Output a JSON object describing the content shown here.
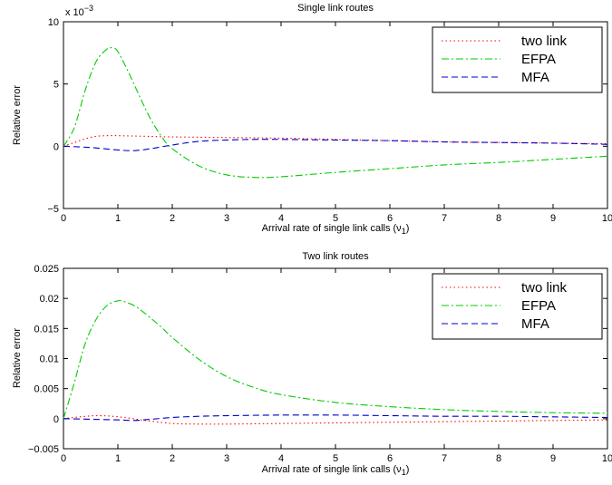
{
  "chart_data": [
    {
      "type": "line",
      "title": "Single link routes",
      "xlabel_main": "Arrival rate of single link calls (ν",
      "xlabel_sub": "1",
      "xlabel_close": ")",
      "ylabel": "Relative error",
      "exponent_label": "x 10",
      "exponent_power": "−3",
      "xlim": [
        0,
        10
      ],
      "ylim": [
        -5,
        10
      ],
      "xticks": [
        0,
        1,
        2,
        3,
        4,
        5,
        6,
        7,
        8,
        9,
        10
      ],
      "xtick_labels": [
        "0",
        "1",
        "2",
        "3",
        "4",
        "5",
        "6",
        "7",
        "8",
        "9",
        "10"
      ],
      "yticks": [
        -5,
        0,
        5,
        10
      ],
      "ytick_labels": [
        "−5",
        "0",
        "5",
        "10"
      ],
      "legend_position": "top-right",
      "series": [
        {
          "name": "two link",
          "color": "#ff0000",
          "dash": "1.5,3",
          "x": [
            0,
            0.2,
            0.4,
            0.6,
            0.8,
            1.0,
            1.5,
            2,
            3,
            4,
            5,
            6,
            7,
            8,
            9,
            10
          ],
          "y": [
            0,
            0.3,
            0.6,
            0.8,
            0.85,
            0.85,
            0.8,
            0.75,
            0.7,
            0.65,
            0.55,
            0.45,
            0.35,
            0.3,
            0.25,
            0.2
          ]
        },
        {
          "name": "EFPA",
          "color": "#00cc00",
          "dash": "8,3,2,3",
          "x": [
            0,
            0.2,
            0.4,
            0.6,
            0.8,
            0.9,
            1.0,
            1.2,
            1.4,
            1.6,
            1.8,
            2.0,
            2.5,
            3.0,
            3.5,
            4.0,
            5,
            6,
            7,
            8,
            9,
            10
          ],
          "y": [
            0,
            1.5,
            4.5,
            6.8,
            7.8,
            7.9,
            7.6,
            5.9,
            4.0,
            2.2,
            0.8,
            -0.2,
            -1.6,
            -2.3,
            -2.5,
            -2.45,
            -2.1,
            -1.8,
            -1.5,
            -1.3,
            -1.05,
            -0.8
          ]
        },
        {
          "name": "MFA",
          "color": "#0000cc",
          "dash": "7,4",
          "x": [
            0,
            0.5,
            1.0,
            1.3,
            1.6,
            2.0,
            2.5,
            3.0,
            3.5,
            4.0,
            5,
            6,
            7,
            8,
            9,
            10
          ],
          "y": [
            0,
            -0.1,
            -0.3,
            -0.35,
            -0.2,
            0.1,
            0.4,
            0.5,
            0.55,
            0.55,
            0.5,
            0.45,
            0.35,
            0.3,
            0.25,
            0.15
          ]
        }
      ]
    },
    {
      "type": "line",
      "title": "Two link routes",
      "xlabel_main": "Arrival rate of single link calls (ν",
      "xlabel_sub": "1",
      "xlabel_close": ")",
      "ylabel": "Relative error",
      "xlim": [
        0,
        10
      ],
      "ylim": [
        -0.005,
        0.025
      ],
      "xticks": [
        0,
        1,
        2,
        3,
        4,
        5,
        6,
        7,
        8,
        9,
        10
      ],
      "xtick_labels": [
        "0",
        "1",
        "2",
        "3",
        "4",
        "5",
        "6",
        "7",
        "8",
        "9",
        "10"
      ],
      "yticks": [
        -0.005,
        0,
        0.005,
        0.01,
        0.015,
        0.02,
        0.025
      ],
      "ytick_labels": [
        "−0.005",
        "0",
        "0.005",
        "0.01",
        "0.015",
        "0.02",
        "0.025"
      ],
      "legend_position": "top-right",
      "series": [
        {
          "name": "two link",
          "color": "#ff0000",
          "dash": "1.5,3",
          "x": [
            0,
            0.3,
            0.6,
            0.9,
            1.2,
            1.5,
            2,
            2.5,
            3,
            4,
            5,
            6,
            7,
            8,
            9,
            10
          ],
          "y": [
            0,
            0.0003,
            0.0005,
            0.0004,
            0.0001,
            -0.0003,
            -0.0008,
            -0.0009,
            -0.0009,
            -0.0008,
            -0.0007,
            -0.0006,
            -0.0005,
            -0.0004,
            -0.0003,
            -0.0002
          ]
        },
        {
          "name": "EFPA",
          "color": "#00cc00",
          "dash": "8,3,2,3",
          "x": [
            0,
            0.2,
            0.4,
            0.6,
            0.8,
            1.0,
            1.1,
            1.3,
            1.5,
            1.8,
            2.0,
            2.5,
            3.0,
            3.5,
            4,
            5,
            6,
            7,
            8,
            9,
            10
          ],
          "y": [
            0,
            0.006,
            0.0125,
            0.0165,
            0.0188,
            0.0196,
            0.0195,
            0.0188,
            0.0175,
            0.0152,
            0.0135,
            0.0098,
            0.007,
            0.0052,
            0.004,
            0.0027,
            0.002,
            0.0015,
            0.0012,
            0.001,
            0.0009
          ]
        },
        {
          "name": "MFA",
          "color": "#0000cc",
          "dash": "7,4",
          "x": [
            0,
            0.5,
            1.0,
            1.3,
            1.6,
            2.0,
            2.5,
            3,
            4,
            5,
            6,
            7,
            8,
            9,
            10
          ],
          "y": [
            0,
            -0.0001,
            -0.0002,
            -0.0003,
            -0.0001,
            0.0002,
            0.0004,
            0.0005,
            0.0006,
            0.0006,
            0.0005,
            0.0004,
            0.0004,
            0.0003,
            0.0002
          ]
        }
      ]
    }
  ]
}
